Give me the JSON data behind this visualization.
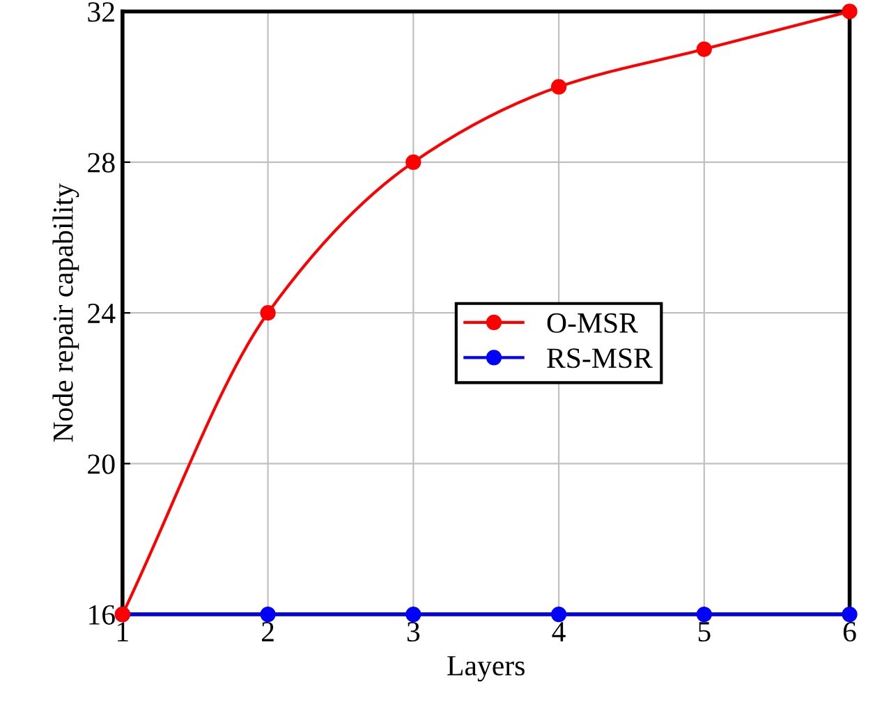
{
  "chart_data": {
    "type": "line",
    "xlabel": "Layers",
    "ylabel": "Node repair capability",
    "x": [
      1,
      2,
      3,
      4,
      5,
      6
    ],
    "series": [
      {
        "name": "O-MSR",
        "color": "#ff0000",
        "values": [
          16,
          24,
          28,
          30,
          31,
          32
        ]
      },
      {
        "name": "RS-MSR",
        "color": "#0000ff",
        "values": [
          16,
          16,
          16,
          16,
          16,
          16
        ]
      }
    ],
    "xlim": [
      1,
      6
    ],
    "ylim": [
      16,
      32
    ],
    "xticks": [
      1,
      2,
      3,
      4,
      5,
      6
    ],
    "yticks": [
      16,
      20,
      24,
      28,
      32
    ],
    "grid": true,
    "legend": "center",
    "marker": "circle",
    "line_style": "solid"
  }
}
